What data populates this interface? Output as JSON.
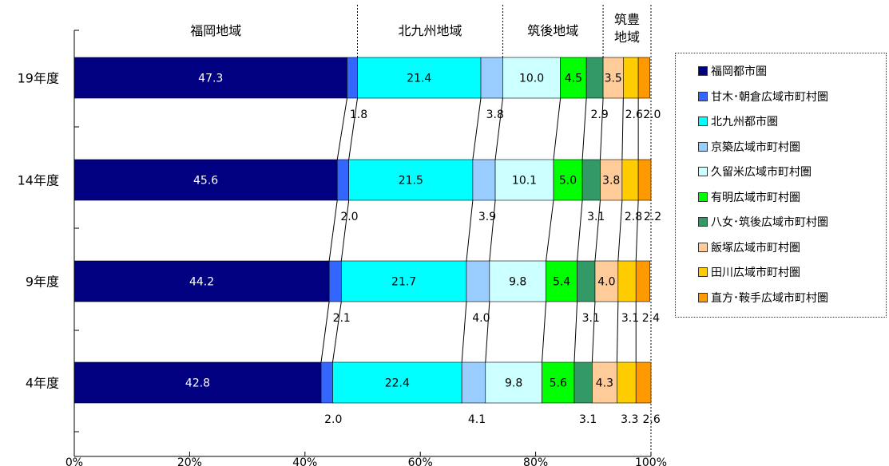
{
  "chart_data": {
    "type": "bar",
    "orientation": "horizontal",
    "stacked": "percent",
    "categories": [
      "19年度",
      "14年度",
      "9年度",
      "4年度"
    ],
    "xlim": [
      0,
      100
    ],
    "xticks": [
      "0%",
      "20%",
      "40%",
      "60%",
      "80%",
      "100%"
    ],
    "region_headers": [
      "福岡地域",
      "北九州地域",
      "筑後地域",
      "筑豊",
      "地域"
    ],
    "series": [
      {
        "name": "福岡都市圏",
        "color": "#000080",
        "values": [
          47.3,
          45.6,
          44.2,
          42.8
        ]
      },
      {
        "name": "甘木･朝倉広域市町村圏",
        "color": "#3366ff",
        "values": [
          1.8,
          2.0,
          2.1,
          2.0
        ]
      },
      {
        "name": "北九州都市圏",
        "color": "#00ffff",
        "values": [
          21.4,
          21.5,
          21.7,
          22.4
        ]
      },
      {
        "name": "京築広域市町村圏",
        "color": "#99ccff",
        "values": [
          3.8,
          3.9,
          4.0,
          4.1
        ]
      },
      {
        "name": "久留米広域市町村圏",
        "color": "#ccffff",
        "values": [
          10.0,
          10.1,
          9.8,
          9.8
        ]
      },
      {
        "name": "有明広域市町村圏",
        "color": "#00ff00",
        "values": [
          4.5,
          5.0,
          5.4,
          5.6
        ]
      },
      {
        "name": "八女･筑後広域市町村圏",
        "color": "#339966",
        "values": [
          2.9,
          3.1,
          3.1,
          3.1
        ]
      },
      {
        "name": "飯塚広域市町村圏",
        "color": "#ffcc99",
        "values": [
          3.5,
          3.8,
          4.0,
          4.3
        ]
      },
      {
        "name": "田川広域市町村圏",
        "color": "#ffcc00",
        "values": [
          2.6,
          2.8,
          3.1,
          3.3
        ]
      },
      {
        "name": "直方･鞍手広域市町村圏",
        "color": "#ff9900",
        "values": [
          2.0,
          2.2,
          2.4,
          2.6
        ]
      }
    ],
    "bar_labels": [
      [
        "47.3",
        "21.4",
        "10.0",
        "4.5",
        "3.5"
      ],
      [
        "45.6",
        "21.5",
        "10.1",
        "5.0",
        "3.8"
      ],
      [
        "44.2",
        "21.7",
        "9.8",
        "5.4",
        "4.0"
      ],
      [
        "42.8",
        "22.4",
        "9.8",
        "5.6",
        "4.3"
      ]
    ],
    "below_labels": [
      [
        "1.8",
        "3.8",
        "2.9",
        "2.6",
        "2.0"
      ],
      [
        "2.0",
        "3.9",
        "3.1",
        "2.8",
        "2.2"
      ],
      [
        "2.1",
        "4.0",
        "3.1",
        "3.1",
        "2.4"
      ],
      [
        "2.0",
        "4.1",
        "3.1",
        "3.3",
        "2.6"
      ]
    ],
    "legend_position": "right",
    "grid": false
  }
}
